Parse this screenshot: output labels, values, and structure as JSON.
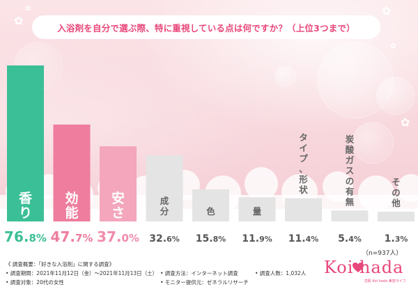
{
  "title": "入浴剤を自分で選ぶ際、特に重視している点は何ですか？（上位3つまで）",
  "n_note": "（n=937人）",
  "chart_data": {
    "type": "bar",
    "title": "入浴剤を自分で選ぶ際、特に重視している点は何ですか？（上位3つまで）",
    "categories": [
      "香り",
      "効能",
      "安さ",
      "成分",
      "色",
      "量",
      "タイプ、形状",
      "炭酸ガスの有無",
      "その他"
    ],
    "values": [
      76.8,
      47.7,
      37.0,
      32.6,
      15.8,
      11.9,
      11.4,
      5.4,
      1.3
    ],
    "value_labels": [
      "76.8",
      "47.7",
      "37.0",
      "32.6",
      "15.8",
      "11.9",
      "11.4",
      "5.4",
      "1.3"
    ],
    "unit": "%",
    "ylim": [
      0,
      80
    ],
    "grid": false,
    "legend": "none",
    "colors": {
      "top1": "#3bbf96",
      "top2": "#ee7d9e",
      "top3": "#f3a6bc",
      "other": "#e4e4e4",
      "label_text_highlight": "#ffffff",
      "label_text_other": "#666666",
      "value_top1": "#3bbf96",
      "value_top2": "#ee7d9e",
      "value_top3": "#f08cab",
      "value_other": "#555555"
    }
  },
  "footer": {
    "overview": "《 調査概要：「好きな入浴剤」に関する調査》",
    "period": "• 調査期間：2021年11月12日（金）〜2021年11月13日（土）",
    "method": "• 調査方法：インターネット調査",
    "count": "• 調査人数：1,032人",
    "target": "• 調査対象：20代の女性",
    "monitor": "• モニター提供元：ゼネラルリサーチ"
  },
  "logo": {
    "text": "Koi  hada",
    "sub": "恋肌 Koi hada 美容ライフ"
  }
}
